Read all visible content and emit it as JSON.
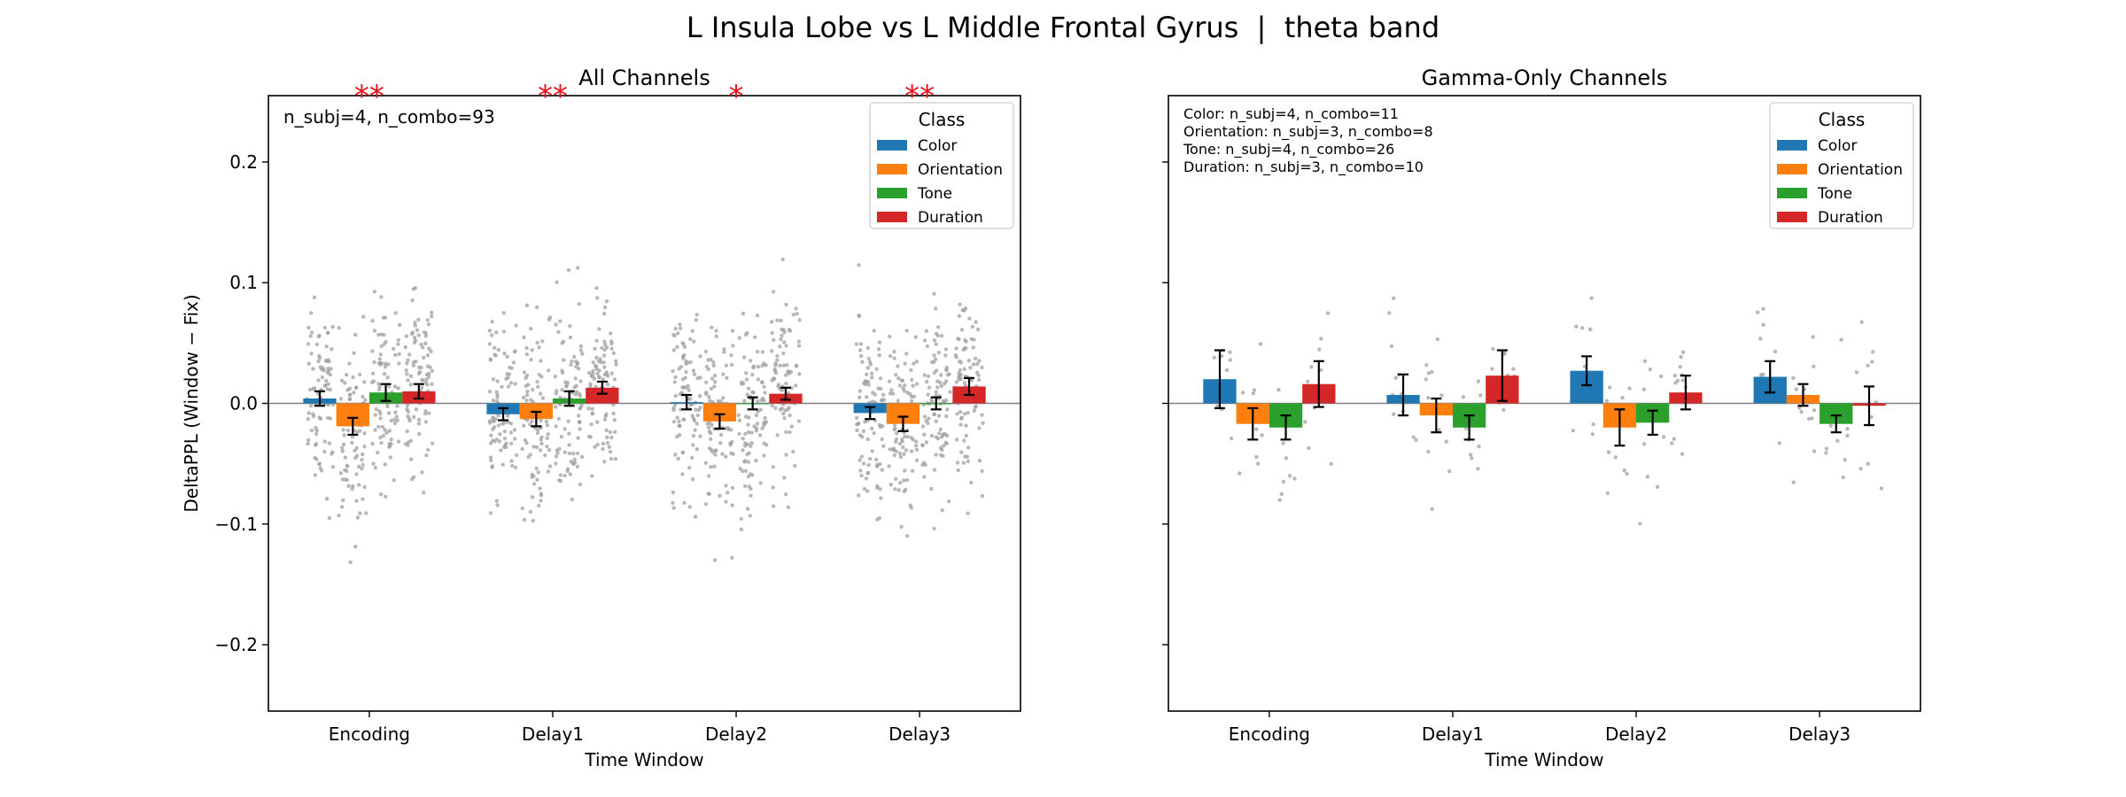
{
  "figure": {
    "suptitle": "L Insula Lobe vs L Middle Frontal Gyrus  |  theta band"
  },
  "colors": {
    "Color": "#1f77b4",
    "Orientation": "#ff7f0e",
    "Tone": "#2ca02c",
    "Duration": "#d62728",
    "significance": "#e8101a",
    "scatter_points": "#a0a0a0"
  },
  "chart_data": [
    {
      "type": "bar",
      "title": "All Channels",
      "xlabel": "Time Window",
      "ylabel": "DeltaPPL (Window − Fix)",
      "categories": [
        "Encoding",
        "Delay1",
        "Delay2",
        "Delay3"
      ],
      "ylim": [
        -0.255,
        0.255
      ],
      "yticks": [
        -0.2,
        -0.1,
        0.0,
        0.1,
        0.2
      ],
      "ytick_labels": [
        "−0.2",
        "−0.1",
        "0.0",
        "0.1",
        "0.2"
      ],
      "grid": false,
      "zero_line": true,
      "legend": {
        "title": "Class",
        "placement": "top-right"
      },
      "annotations": [
        "n_subj=4, n_combo=93"
      ],
      "significance": [
        "**",
        "**",
        "*",
        "**"
      ],
      "series": [
        {
          "name": "Color",
          "values": [
            0.004,
            -0.009,
            0.001,
            -0.008
          ],
          "err": [
            0.006,
            0.005,
            0.006,
            0.005
          ]
        },
        {
          "name": "Orientation",
          "values": [
            -0.019,
            -0.013,
            -0.015,
            -0.017
          ],
          "err": [
            0.007,
            0.006,
            0.006,
            0.006
          ]
        },
        {
          "name": "Tone",
          "values": [
            0.009,
            0.004,
            0.0,
            0.0
          ],
          "err": [
            0.007,
            0.006,
            0.005,
            0.005
          ]
        },
        {
          "name": "Duration",
          "values": [
            0.01,
            0.013,
            0.008,
            0.014
          ],
          "err": [
            0.006,
            0.005,
            0.005,
            0.007
          ]
        }
      ]
    },
    {
      "type": "bar",
      "title": "Gamma-Only Channels",
      "xlabel": "Time Window",
      "ylabel": "",
      "categories": [
        "Encoding",
        "Delay1",
        "Delay2",
        "Delay3"
      ],
      "ylim": [
        -0.255,
        0.255
      ],
      "yticks": [
        -0.2,
        -0.1,
        0.0,
        0.1,
        0.2
      ],
      "ytick_labels": [],
      "grid": false,
      "zero_line": true,
      "legend": {
        "title": "Class",
        "placement": "top-right"
      },
      "annotations": [
        "Color: n_subj=4, n_combo=11",
        "Orientation: n_subj=3, n_combo=8",
        "Tone: n_subj=4, n_combo=26",
        "Duration: n_subj=3, n_combo=10"
      ],
      "significance": [],
      "series": [
        {
          "name": "Color",
          "values": [
            0.02,
            0.007,
            0.027,
            0.022
          ],
          "err": [
            0.024,
            0.017,
            0.012,
            0.013
          ]
        },
        {
          "name": "Orientation",
          "values": [
            -0.017,
            -0.01,
            -0.02,
            0.007
          ],
          "err": [
            0.013,
            0.014,
            0.015,
            0.009
          ]
        },
        {
          "name": "Tone",
          "values": [
            -0.02,
            -0.02,
            -0.016,
            -0.017
          ],
          "err": [
            0.01,
            0.01,
            0.01,
            0.007
          ]
        },
        {
          "name": "Duration",
          "values": [
            0.016,
            0.023,
            0.009,
            -0.002
          ],
          "err": [
            0.019,
            0.021,
            0.014,
            0.016
          ]
        }
      ]
    }
  ]
}
